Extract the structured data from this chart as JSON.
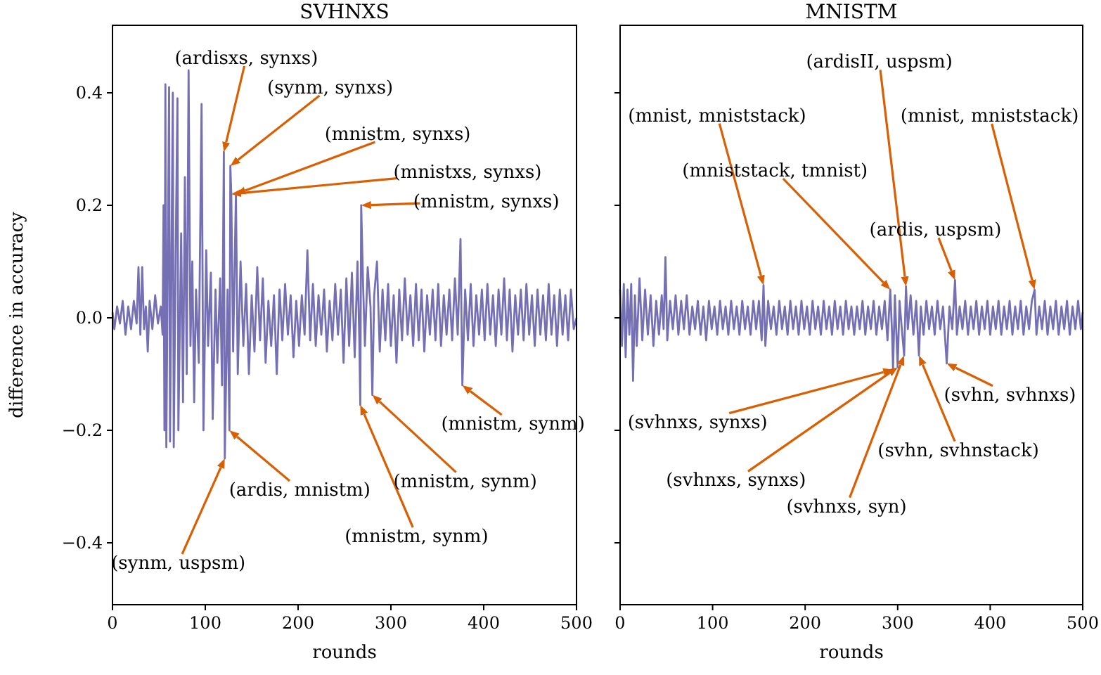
{
  "chart_data": [
    {
      "type": "line",
      "title": "SVHNXS",
      "xlabel": "rounds",
      "ylabel": "difference in accuracy",
      "xlim": [
        0,
        500
      ],
      "xticks": [
        0,
        100,
        200,
        300,
        400,
        500
      ],
      "ylim": [
        -0.51,
        0.52
      ],
      "yticks": [
        {
          "value": -0.4,
          "label": "−0.4"
        },
        {
          "value": -0.2,
          "label": "−0.2"
        },
        {
          "value": 0,
          "label": "0.0"
        },
        {
          "value": 0.2,
          "label": "0.2"
        },
        {
          "value": 0.4,
          "label": "0.4"
        }
      ],
      "grid": false,
      "marker": "none",
      "line_style": "solid",
      "x": [
        0,
        2,
        5,
        8,
        11,
        14,
        17,
        20,
        23,
        26,
        28,
        30,
        32,
        34,
        36,
        38,
        40,
        43,
        46,
        49,
        52,
        54,
        55,
        56,
        57,
        58,
        61,
        62,
        65,
        66,
        68,
        70,
        71,
        74,
        76,
        78,
        80,
        82,
        84,
        86,
        88,
        90,
        93,
        96,
        98,
        101,
        103,
        106,
        108,
        111,
        113,
        116,
        118,
        120,
        121,
        124,
        126,
        127,
        128,
        130,
        133,
        135,
        138,
        141,
        144,
        147,
        150,
        153,
        156,
        159,
        162,
        165,
        168,
        171,
        174,
        177,
        180,
        183,
        186,
        189,
        192,
        195,
        198,
        201,
        204,
        207,
        210,
        213,
        216,
        219,
        222,
        225,
        228,
        231,
        234,
        237,
        240,
        243,
        246,
        249,
        252,
        255,
        258,
        261,
        264,
        266,
        267,
        268,
        270,
        272,
        275,
        278,
        280,
        282,
        285,
        288,
        291,
        294,
        297,
        300,
        303,
        306,
        309,
        312,
        315,
        318,
        321,
        324,
        327,
        330,
        333,
        336,
        339,
        342,
        345,
        348,
        351,
        354,
        357,
        360,
        363,
        366,
        369,
        372,
        375,
        377,
        380,
        383,
        386,
        389,
        392,
        395,
        398,
        401,
        404,
        407,
        410,
        413,
        416,
        419,
        422,
        425,
        428,
        431,
        434,
        437,
        440,
        443,
        446,
        449,
        452,
        455,
        458,
        461,
        464,
        467,
        470,
        473,
        476,
        479,
        482,
        485,
        488,
        491,
        494,
        497,
        500
      ],
      "series": [
        {
          "color": "#7570b3",
          "values": [
            0.01,
            -0.02,
            0.02,
            -0.01,
            0.03,
            -0.03,
            0.02,
            -0.02,
            0.03,
            -0.01,
            0.09,
            -0.03,
            0.09,
            -0.02,
            0.02,
            -0.06,
            0.03,
            -0.02,
            0.04,
            -0.01,
            0.02,
            -0.03,
            0.2,
            -0.2,
            0.415,
            -0.23,
            0.41,
            -0.22,
            0.4,
            -0.23,
            0.1,
            0.39,
            -0.2,
            0.15,
            -0.15,
            0.25,
            -0.1,
            0.44,
            -0.05,
            0.1,
            -0.15,
            0.05,
            -0.08,
            0.38,
            -0.2,
            0.12,
            -0.05,
            0.08,
            -0.18,
            0.05,
            -0.08,
            0.07,
            -0.12,
            0.295,
            -0.25,
            0.05,
            -0.2,
            0.27,
            0.22,
            -0.06,
            0.22,
            -0.1,
            0.1,
            -0.05,
            0.06,
            -0.1,
            0.04,
            -0.06,
            0.09,
            -0.04,
            0.07,
            -0.08,
            0.03,
            -0.05,
            0.04,
            -0.1,
            0.05,
            -0.04,
            0.06,
            -0.03,
            0.04,
            -0.07,
            0.03,
            -0.05,
            0.04,
            -0.03,
            0.12,
            -0.04,
            0.06,
            -0.05,
            0.04,
            -0.03,
            0.05,
            -0.06,
            0.03,
            -0.04,
            0.06,
            -0.03,
            0.05,
            -0.08,
            0.07,
            -0.05,
            0.08,
            -0.07,
            0.1,
            -0.04,
            -0.155,
            0.2,
            0.06,
            -0.05,
            0.09,
            0.02,
            -0.137,
            0.04,
            0.1,
            -0.06,
            0.05,
            -0.04,
            0.06,
            -0.05,
            0.04,
            -0.08,
            0.05,
            -0.04,
            0.07,
            -0.03,
            0.04,
            -0.05,
            0.06,
            -0.04,
            0.05,
            -0.06,
            0.04,
            -0.03,
            0.05,
            -0.04,
            0.06,
            -0.05,
            0.04,
            -0.03,
            0.05,
            -0.04,
            0.07,
            -0.03,
            0.14,
            -0.12,
            0.05,
            -0.04,
            0.06,
            -0.05,
            0.04,
            -0.03,
            0.05,
            -0.04,
            0.06,
            -0.03,
            0.04,
            -0.05,
            0.05,
            -0.03,
            0.07,
            -0.04,
            0.05,
            -0.06,
            0.04,
            -0.03,
            0.05,
            -0.04,
            0.06,
            -0.03,
            0.04,
            -0.05,
            0.05,
            -0.03,
            0.04,
            -0.04,
            0.06,
            -0.03,
            0.04,
            -0.05,
            0.05,
            -0.03,
            0.04,
            -0.04,
            0.05,
            -0.02,
            0.0
          ]
        }
      ],
      "annotations": [
        {
          "text": "(ardisxs, synxs)",
          "x": 120,
          "y": 0.295
        },
        {
          "text": "(synm, synxs)",
          "x": 127,
          "y": 0.27
        },
        {
          "text": "(mnistm, synxs)",
          "x": 133,
          "y": 0.22
        },
        {
          "text": "(mnistxs, synxs)",
          "x": 128,
          "y": 0.22
        },
        {
          "text": "(mnistm, synxs)",
          "x": 268,
          "y": 0.2
        },
        {
          "text": "(ardis, mnistm)",
          "x": 126,
          "y": -0.2
        },
        {
          "text": "(synm, uspsm)",
          "x": 121,
          "y": -0.25
        },
        {
          "text": "(mnistm, synm)",
          "x": 267,
          "y": -0.155
        },
        {
          "text": "(mnistm, synm)",
          "x": 280,
          "y": -0.137
        },
        {
          "text": "(mnistm, synm)",
          "x": 377,
          "y": -0.12
        }
      ]
    },
    {
      "type": "line",
      "title": "MNISTM",
      "xlabel": "rounds",
      "xlim": [
        0,
        500
      ],
      "xticks": [
        0,
        100,
        200,
        300,
        400,
        500
      ],
      "ylim": [
        -0.51,
        0.52
      ],
      "yticks": [
        {
          "value": -0.4,
          "label": null
        },
        {
          "value": -0.2,
          "label": null
        },
        {
          "value": 0,
          "label": null
        },
        {
          "value": 0.2,
          "label": null
        },
        {
          "value": 0.4,
          "label": null
        }
      ],
      "tick_labels": "x",
      "grid": false,
      "marker": "none",
      "line_style": "solid",
      "x": [
        0,
        2,
        4,
        6,
        8,
        10,
        12,
        14,
        16,
        18,
        21,
        24,
        27,
        30,
        33,
        36,
        39,
        42,
        45,
        47,
        49,
        51,
        54,
        57,
        60,
        63,
        66,
        69,
        72,
        75,
        78,
        81,
        84,
        87,
        90,
        93,
        96,
        99,
        102,
        105,
        108,
        111,
        114,
        117,
        120,
        123,
        126,
        129,
        132,
        135,
        138,
        141,
        144,
        147,
        150,
        153,
        155,
        157,
        160,
        163,
        166,
        169,
        172,
        175,
        178,
        181,
        184,
        187,
        190,
        193,
        196,
        199,
        202,
        205,
        208,
        211,
        214,
        217,
        220,
        223,
        226,
        229,
        232,
        235,
        238,
        241,
        244,
        247,
        250,
        253,
        256,
        259,
        262,
        265,
        268,
        271,
        274,
        277,
        280,
        283,
        286,
        289,
        292,
        294,
        295,
        297,
        300,
        302,
        305,
        307,
        309,
        311,
        314,
        317,
        320,
        323,
        325,
        328,
        331,
        334,
        337,
        340,
        343,
        346,
        349,
        351,
        353,
        356,
        359,
        362,
        364,
        367,
        370,
        373,
        376,
        379,
        382,
        385,
        388,
        391,
        394,
        397,
        400,
        403,
        406,
        409,
        412,
        415,
        418,
        421,
        424,
        427,
        430,
        433,
        436,
        439,
        442,
        445,
        448,
        450,
        453,
        456,
        459,
        462,
        465,
        468,
        471,
        474,
        477,
        480,
        483,
        486,
        489,
        492,
        495,
        498,
        500
      ],
      "series": [
        {
          "color": "#7570b3",
          "values": [
            0.05,
            -0.05,
            0.06,
            -0.07,
            0.05,
            -0.03,
            0.06,
            -0.112,
            0.04,
            -0.05,
            0.07,
            -0.04,
            0.05,
            -0.03,
            0.04,
            -0.05,
            0.03,
            -0.03,
            0.04,
            -0.02,
            0.108,
            -0.04,
            0.03,
            -0.02,
            0.04,
            -0.03,
            0.03,
            -0.02,
            0.04,
            -0.03,
            0.02,
            -0.02,
            0.03,
            -0.03,
            0.02,
            -0.04,
            0.03,
            -0.02,
            0.02,
            -0.03,
            0.03,
            -0.02,
            0.02,
            -0.03,
            0.03,
            -0.02,
            0.02,
            -0.03,
            0.03,
            -0.02,
            0.02,
            -0.03,
            0.03,
            -0.02,
            0.03,
            -0.04,
            0.058,
            -0.05,
            0.03,
            -0.02,
            0.02,
            -0.03,
            0.03,
            -0.02,
            0.02,
            -0.03,
            0.03,
            -0.02,
            0.02,
            -0.03,
            0.03,
            -0.02,
            0.02,
            -0.03,
            0.03,
            -0.02,
            0.02,
            -0.03,
            0.03,
            -0.02,
            0.02,
            -0.03,
            0.03,
            -0.02,
            0.02,
            -0.03,
            0.03,
            -0.02,
            0.02,
            -0.03,
            0.02,
            -0.02,
            0.03,
            -0.03,
            0.02,
            -0.02,
            0.03,
            -0.03,
            0.02,
            -0.02,
            0.03,
            -0.04,
            0.05,
            -0.03,
            -0.092,
            0.04,
            -0.088,
            0.03,
            -0.03,
            -0.067,
            0.056,
            -0.02,
            0.04,
            -0.03,
            0.03,
            -0.067,
            0.02,
            -0.03,
            0.03,
            -0.02,
            0.02,
            -0.03,
            0.03,
            -0.02,
            0.02,
            -0.03,
            -0.081,
            0.02,
            -0.02,
            0.067,
            -0.03,
            0.02,
            -0.02,
            0.03,
            -0.03,
            0.02,
            -0.02,
            0.03,
            -0.03,
            0.02,
            -0.02,
            0.03,
            -0.03,
            0.02,
            -0.02,
            0.03,
            -0.03,
            0.02,
            -0.02,
            0.03,
            -0.03,
            0.02,
            -0.02,
            0.03,
            -0.03,
            0.02,
            -0.02,
            0.03,
            0.05,
            -0.03,
            0.02,
            -0.02,
            0.03,
            -0.03,
            0.02,
            -0.02,
            0.03,
            -0.03,
            0.02,
            -0.02,
            0.03,
            -0.03,
            0.02,
            -0.02,
            0.03,
            -0.02,
            0.01
          ]
        }
      ],
      "annotations": [
        {
          "text": "(mnist, mniststack)",
          "x": 155,
          "y": 0.058
        },
        {
          "text": "(mniststack, tmnist)",
          "x": 292,
          "y": 0.05
        },
        {
          "text": "(ardisII, uspsm)",
          "x": 309,
          "y": 0.056
        },
        {
          "text": "(ardis, uspsm)",
          "x": 362,
          "y": 0.067
        },
        {
          "text": "(mnist, mniststack)",
          "x": 448,
          "y": 0.05
        },
        {
          "text": "(svhnxs, synxs)",
          "x": 295,
          "y": -0.092
        },
        {
          "text": "(svhnxs, synxs)",
          "x": 300,
          "y": -0.088
        },
        {
          "text": "(svhnxs, syn)",
          "x": 307,
          "y": -0.067
        },
        {
          "text": "(svhn, svhnstack)",
          "x": 323,
          "y": -0.067
        },
        {
          "text": "(svhn, svhnxs)",
          "x": 353,
          "y": -0.081
        }
      ]
    }
  ]
}
